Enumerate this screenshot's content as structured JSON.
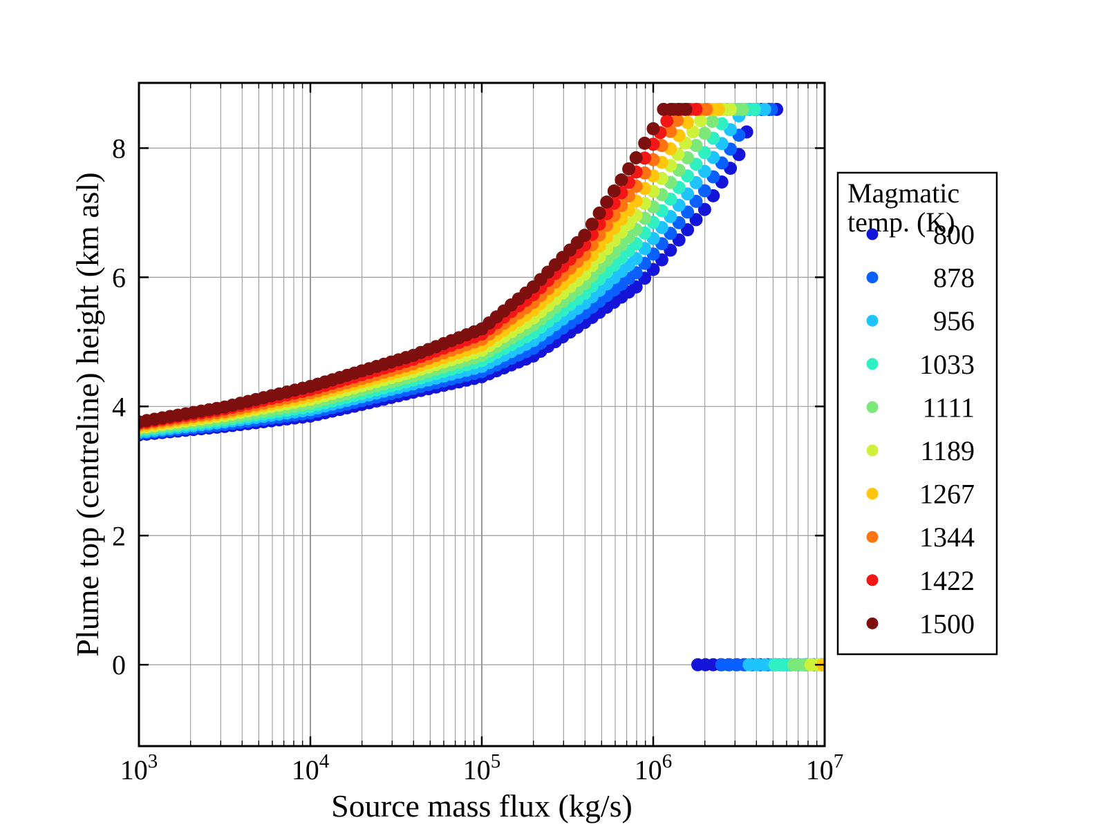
{
  "figure": {
    "background_color": "#ffffff",
    "frame_color": "#000000",
    "grid_color": "#9a9a9a"
  },
  "chart_data": {
    "type": "scatter",
    "title": "",
    "xlabel": "Source mass flux (kg/s)",
    "ylabel": "Plume top (centreline) height (km asl)",
    "x_scale": "log10",
    "xlim": [
      1000,
      10000000
    ],
    "ylim_km": [
      -1.26,
      9.01
    ],
    "xtick_exponents": [
      3,
      4,
      5,
      6,
      7
    ],
    "xtick_base": "10",
    "yticks": [
      0,
      2,
      4,
      6,
      8
    ],
    "grid": {
      "vertical_major": true,
      "vertical_minor": true,
      "horizontal_major": true,
      "horizontal_minor": false
    },
    "plume_cap_height_km": 8.6,
    "legend": {
      "title_line1": "Magmatic",
      "title_line2": "temp. (K)",
      "position": "right",
      "entries": [
        "800",
        "878",
        "956",
        "1033",
        "1111",
        "1189",
        "1267",
        "1344",
        "1422",
        "1500"
      ]
    },
    "series": [
      {
        "temp": 800,
        "color": "#1414d9",
        "rising_points_logflux_height": [
          [
            3.0,
            3.56
          ],
          [
            3.5,
            3.69
          ],
          [
            4.0,
            3.85
          ],
          [
            4.3,
            4.03
          ],
          [
            4.6,
            4.22
          ],
          [
            5.0,
            4.46
          ],
          [
            5.3,
            4.78
          ],
          [
            5.6,
            5.3
          ],
          [
            5.9,
            5.85
          ],
          [
            6.0,
            6.12
          ],
          [
            6.1,
            6.42
          ],
          [
            6.3,
            7.05
          ],
          [
            6.5,
            7.9
          ],
          [
            6.59,
            8.6
          ],
          [
            6.72,
            8.6
          ]
        ],
        "collapse_logflux_range": [
          6.26,
          7.0
        ]
      },
      {
        "temp": 878,
        "color": "#0a5fff",
        "rising_points_logflux_height": [
          [
            3.0,
            3.58
          ],
          [
            3.5,
            3.72
          ],
          [
            4.0,
            3.9
          ],
          [
            4.3,
            4.09
          ],
          [
            4.6,
            4.28
          ],
          [
            5.0,
            4.54
          ],
          [
            5.3,
            4.9
          ],
          [
            5.6,
            5.45
          ],
          [
            5.9,
            6.07
          ],
          [
            6.0,
            6.36
          ],
          [
            6.1,
            6.68
          ],
          [
            6.3,
            7.34
          ],
          [
            6.5,
            8.2
          ],
          [
            6.56,
            8.6
          ],
          [
            6.69,
            8.6
          ]
        ],
        "collapse_logflux_range": [
          6.4,
          7.0
        ]
      },
      {
        "temp": 956,
        "color": "#1fc4ff",
        "rising_points_logflux_height": [
          [
            3.0,
            3.6
          ],
          [
            3.5,
            3.76
          ],
          [
            4.0,
            3.95
          ],
          [
            4.3,
            4.15
          ],
          [
            4.6,
            4.35
          ],
          [
            5.0,
            4.62
          ],
          [
            5.3,
            5.02
          ],
          [
            5.6,
            5.6
          ],
          [
            5.9,
            6.29
          ],
          [
            6.0,
            6.6
          ],
          [
            6.1,
            6.94
          ],
          [
            6.3,
            7.64
          ],
          [
            6.5,
            8.5
          ],
          [
            6.52,
            8.6
          ],
          [
            6.65,
            8.6
          ]
        ],
        "collapse_logflux_range": [
          6.56,
          7.0
        ]
      },
      {
        "temp": 1033,
        "color": "#30efc3",
        "rising_points_logflux_height": [
          [
            3.0,
            3.63
          ],
          [
            3.5,
            3.79
          ],
          [
            4.0,
            4.0
          ],
          [
            4.3,
            4.2
          ],
          [
            4.6,
            4.41
          ],
          [
            5.0,
            4.71
          ],
          [
            5.3,
            5.14
          ],
          [
            5.6,
            5.75
          ],
          [
            5.9,
            6.52
          ],
          [
            6.0,
            6.85
          ],
          [
            6.1,
            7.21
          ],
          [
            6.3,
            7.93
          ],
          [
            6.45,
            8.6
          ],
          [
            6.59,
            8.6
          ]
        ],
        "collapse_logflux_range": [
          6.71,
          7.0
        ]
      },
      {
        "temp": 1111,
        "color": "#7ce87a",
        "rising_points_logflux_height": [
          [
            3.0,
            3.65
          ],
          [
            3.5,
            3.82
          ],
          [
            4.0,
            4.05
          ],
          [
            4.3,
            4.26
          ],
          [
            4.6,
            4.47
          ],
          [
            5.0,
            4.79
          ],
          [
            5.3,
            5.26
          ],
          [
            5.6,
            5.9
          ],
          [
            5.9,
            6.74
          ],
          [
            6.0,
            7.09
          ],
          [
            6.1,
            7.47
          ],
          [
            6.3,
            8.23
          ],
          [
            6.39,
            8.6
          ],
          [
            6.52,
            8.6
          ]
        ],
        "collapse_logflux_range": [
          6.82,
          7.0
        ]
      },
      {
        "temp": 1189,
        "color": "#cef23b",
        "rising_points_logflux_height": [
          [
            3.0,
            3.67
          ],
          [
            3.5,
            3.86
          ],
          [
            4.0,
            4.11
          ],
          [
            4.3,
            4.32
          ],
          [
            4.6,
            4.54
          ],
          [
            5.0,
            4.87
          ],
          [
            5.3,
            5.37
          ],
          [
            5.6,
            6.05
          ],
          [
            5.9,
            6.96
          ],
          [
            6.0,
            7.33
          ],
          [
            6.1,
            7.73
          ],
          [
            6.32,
            8.6
          ],
          [
            6.45,
            8.6
          ]
        ],
        "collapse_logflux_range": [
          6.92,
          7.0
        ]
      },
      {
        "temp": 1267,
        "color": "#ffc60d",
        "rising_points_logflux_height": [
          [
            3.0,
            3.69
          ],
          [
            3.5,
            3.89
          ],
          [
            4.0,
            4.16
          ],
          [
            4.3,
            4.38
          ],
          [
            4.6,
            4.6
          ],
          [
            5.0,
            4.95
          ],
          [
            5.3,
            5.49
          ],
          [
            5.6,
            6.2
          ],
          [
            5.9,
            7.18
          ],
          [
            6.0,
            7.57
          ],
          [
            6.1,
            7.99
          ],
          [
            6.25,
            8.6
          ],
          [
            6.38,
            8.6
          ]
        ],
        "collapse_logflux_range": [
          6.99,
          7.0
        ]
      },
      {
        "temp": 1344,
        "color": "#ff7412",
        "rising_points_logflux_height": [
          [
            3.0,
            3.72
          ],
          [
            3.5,
            3.92
          ],
          [
            4.0,
            4.21
          ],
          [
            4.3,
            4.43
          ],
          [
            4.6,
            4.66
          ],
          [
            5.0,
            5.04
          ],
          [
            5.3,
            5.61
          ],
          [
            5.6,
            6.35
          ],
          [
            5.9,
            7.41
          ],
          [
            6.0,
            7.82
          ],
          [
            6.1,
            8.26
          ],
          [
            6.18,
            8.6
          ],
          [
            6.31,
            8.6
          ]
        ],
        "collapse_logflux_range": null
      },
      {
        "temp": 1422,
        "color": "#f21616",
        "rising_points_logflux_height": [
          [
            3.0,
            3.74
          ],
          [
            3.5,
            3.96
          ],
          [
            4.0,
            4.26
          ],
          [
            4.3,
            4.49
          ],
          [
            4.6,
            4.73
          ],
          [
            5.0,
            5.12
          ],
          [
            5.3,
            5.73
          ],
          [
            5.6,
            6.5
          ],
          [
            5.9,
            7.63
          ],
          [
            6.0,
            8.06
          ],
          [
            6.12,
            8.6
          ],
          [
            6.25,
            8.6
          ]
        ],
        "collapse_logflux_range": null
      },
      {
        "temp": 1500,
        "color": "#7d0f0f",
        "rising_points_logflux_height": [
          [
            3.0,
            3.76
          ],
          [
            3.5,
            3.99
          ],
          [
            4.0,
            4.31
          ],
          [
            4.3,
            4.55
          ],
          [
            4.6,
            4.79
          ],
          [
            5.0,
            5.2
          ],
          [
            5.3,
            5.85
          ],
          [
            5.6,
            6.65
          ],
          [
            5.9,
            7.85
          ],
          [
            6.0,
            8.3
          ],
          [
            6.06,
            8.6
          ],
          [
            6.19,
            8.6
          ]
        ],
        "collapse_logflux_range": null
      }
    ]
  }
}
